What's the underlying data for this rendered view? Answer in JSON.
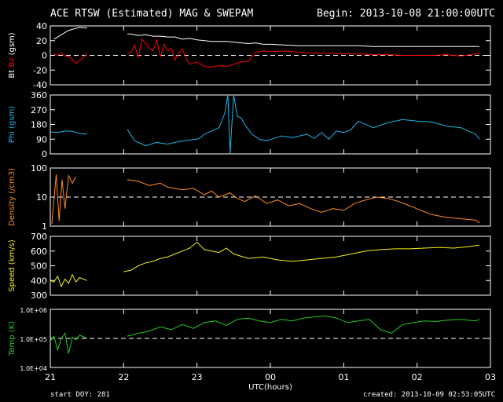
{
  "header": {
    "title": "ACE RTSW (Estimated) MAG & SWEPAM",
    "begin": "Begin: 2013-10-08 21:00:00UTC"
  },
  "footer": {
    "start_doy": "start DOY: 281",
    "created": "created: 2013-10-09 02:53:05UTC"
  },
  "colors": {
    "background": "#000000",
    "axes": "#ffffff",
    "bt": "#ffffff",
    "bz": "#ff0000",
    "phi": "#1fb4e6",
    "density": "#ff8c1a",
    "speed": "#f2f21a",
    "temp": "#22cc22"
  },
  "chart_data": [
    {
      "type": "line",
      "ylabel_parts": [
        "Bt",
        "Bz",
        "(gsm)"
      ],
      "ylim": [
        -40,
        40
      ],
      "yticks": [
        40,
        20,
        0,
        -20,
        -40
      ],
      "ref_line": 0,
      "series": [
        {
          "name": "Bt",
          "x": [
            21.05,
            21.15,
            21.25,
            21.32,
            21.4,
            21.5,
            22.05,
            22.1,
            22.2,
            22.3,
            22.4,
            22.5,
            22.6,
            22.7,
            22.8,
            22.9,
            23.0,
            23.1,
            23.2,
            23.3,
            23.4,
            23.5,
            23.6,
            23.7,
            23.8,
            23.9,
            24.0,
            24.2,
            24.4,
            24.6,
            24.8,
            25.0,
            25.2,
            25.4,
            25.6,
            25.8,
            26.0,
            26.2,
            26.4,
            26.6,
            26.85
          ],
          "values": [
            22,
            28,
            34,
            36,
            38,
            37,
            29,
            29,
            27,
            28,
            26,
            26,
            25,
            25,
            22,
            23,
            21,
            20,
            19,
            19,
            19,
            18,
            17,
            16,
            17,
            15,
            15,
            14,
            13,
            13,
            13,
            13,
            13,
            12,
            12,
            12,
            12,
            12,
            12,
            12,
            12
          ]
        },
        {
          "name": "Bz",
          "x": [
            21.05,
            21.1,
            21.15,
            21.2,
            21.25,
            21.3,
            21.35,
            21.4,
            21.45,
            21.5,
            22.05,
            22.1,
            22.15,
            22.2,
            22.25,
            22.3,
            22.35,
            22.4,
            22.45,
            22.5,
            22.55,
            22.6,
            22.65,
            22.7,
            22.75,
            22.8,
            22.85,
            22.9,
            23.0,
            23.1,
            23.2,
            23.3,
            23.4,
            23.5,
            23.6,
            23.7,
            23.8,
            23.9,
            24.0,
            24.2,
            24.4,
            24.6,
            24.8,
            25.0,
            25.2,
            25.4,
            25.6,
            25.8,
            26.0,
            26.2,
            26.4,
            26.6,
            26.8,
            26.85
          ],
          "values": [
            2,
            0,
            3,
            -1,
            -2,
            -5,
            -11,
            -7,
            -3,
            3,
            3,
            4,
            14,
            -3,
            22,
            16,
            10,
            6,
            21,
            -2,
            15,
            6,
            10,
            -6,
            3,
            8,
            -4,
            -12,
            -9,
            -15,
            -16,
            -14,
            -15,
            -12,
            -9,
            -8,
            4,
            6,
            5,
            6,
            4,
            3,
            3,
            2,
            2,
            1,
            1,
            0,
            0,
            0,
            1,
            -1,
            2,
            3
          ]
        }
      ]
    },
    {
      "type": "line",
      "ylabel": "Phi (gsm)",
      "ylim": [
        0,
        360
      ],
      "yticks": [
        360,
        270,
        180,
        90,
        0
      ],
      "series": [
        {
          "name": "Phi",
          "x": [
            21.0,
            21.1,
            21.2,
            21.3,
            21.4,
            21.5,
            22.05,
            22.15,
            22.3,
            22.45,
            22.6,
            22.75,
            22.9,
            23.0,
            23.05,
            23.1,
            23.2,
            23.3,
            23.38,
            23.42,
            23.45,
            23.5,
            23.55,
            23.6,
            23.65,
            23.7,
            23.75,
            23.85,
            23.95,
            24.05,
            24.15,
            24.3,
            24.4,
            24.5,
            24.6,
            24.7,
            24.8,
            24.9,
            25.0,
            25.1,
            25.2,
            25.4,
            25.6,
            25.8,
            26.0,
            26.2,
            26.4,
            26.6,
            26.8,
            26.85
          ],
          "values": [
            135,
            130,
            140,
            138,
            125,
            120,
            150,
            80,
            50,
            70,
            60,
            75,
            85,
            90,
            100,
            120,
            140,
            160,
            250,
            365,
            0,
            365,
            230,
            220,
            180,
            150,
            120,
            90,
            80,
            95,
            110,
            100,
            110,
            120,
            95,
            130,
            90,
            140,
            130,
            150,
            200,
            160,
            190,
            210,
            200,
            195,
            170,
            160,
            120,
            90
          ]
        }
      ]
    },
    {
      "type": "line",
      "ylabel": "Density (/cm3)",
      "yscale": "log",
      "ylim": [
        1,
        100
      ],
      "yticks": [
        100,
        10,
        1
      ],
      "ref_line": 10,
      "series": [
        {
          "name": "Density",
          "x": [
            21.02,
            21.08,
            21.12,
            21.16,
            21.2,
            21.25,
            21.3,
            21.35,
            22.05,
            22.2,
            22.35,
            22.5,
            22.6,
            22.8,
            22.95,
            23.1,
            23.2,
            23.3,
            23.45,
            23.55,
            23.65,
            23.8,
            23.95,
            24.1,
            24.25,
            24.4,
            24.55,
            24.7,
            24.85,
            25.0,
            25.15,
            25.3,
            25.45,
            25.6,
            25.75,
            25.9,
            26.05,
            26.2,
            26.4,
            26.6,
            26.8,
            26.85
          ],
          "values": [
            1.2,
            60,
            1.5,
            40,
            4,
            55,
            30,
            50,
            40,
            35,
            25,
            30,
            22,
            18,
            20,
            12,
            16,
            10,
            14,
            9,
            7,
            11,
            6,
            8,
            5,
            6,
            4,
            3,
            4,
            3.5,
            6,
            8,
            10,
            9,
            7,
            5,
            3.5,
            2.5,
            2,
            1.8,
            1.6,
            1.3
          ]
        }
      ]
    },
    {
      "type": "line",
      "ylabel": "Speed (km/s)",
      "ylim": [
        300,
        700
      ],
      "yticks": [
        700,
        600,
        500,
        400,
        300
      ],
      "series": [
        {
          "name": "Speed",
          "x": [
            21.0,
            21.05,
            21.1,
            21.15,
            21.2,
            21.25,
            21.3,
            21.35,
            21.4,
            21.5,
            22.0,
            22.1,
            22.2,
            22.3,
            22.4,
            22.5,
            22.6,
            22.7,
            22.8,
            22.9,
            23.0,
            23.1,
            23.2,
            23.3,
            23.4,
            23.5,
            23.7,
            23.9,
            24.1,
            24.3,
            24.5,
            24.7,
            24.9,
            25.1,
            25.3,
            25.5,
            25.7,
            25.9,
            26.1,
            26.3,
            26.5,
            26.7,
            26.85
          ],
          "values": [
            400,
            390,
            430,
            360,
            410,
            380,
            440,
            390,
            420,
            400,
            460,
            470,
            500,
            520,
            530,
            550,
            560,
            580,
            600,
            620,
            660,
            610,
            600,
            590,
            620,
            580,
            550,
            560,
            540,
            530,
            540,
            550,
            560,
            580,
            600,
            610,
            615,
            615,
            620,
            625,
            620,
            630,
            640
          ]
        }
      ]
    },
    {
      "type": "line",
      "ylabel": "Temp (K)",
      "yscale": "log",
      "ylim": [
        10000,
        1000000
      ],
      "yticks": [
        "1.0E+06",
        "1.0E+05",
        "1.0E+04"
      ],
      "ref_line": 100000,
      "series": [
        {
          "name": "Temp",
          "x": [
            21.0,
            21.05,
            21.1,
            21.15,
            21.2,
            21.25,
            21.3,
            21.35,
            21.4,
            21.5,
            22.05,
            22.2,
            22.35,
            22.5,
            22.65,
            22.8,
            22.95,
            23.1,
            23.25,
            23.4,
            23.55,
            23.7,
            23.85,
            24.0,
            24.15,
            24.3,
            24.45,
            24.6,
            24.75,
            24.9,
            25.05,
            25.2,
            25.35,
            25.5,
            25.65,
            25.8,
            25.95,
            26.1,
            26.25,
            26.4,
            26.6,
            26.8,
            26.85
          ],
          "values": [
            80000,
            120000,
            40000,
            100000,
            150000,
            30000,
            110000,
            90000,
            130000,
            100000,
            120000,
            150000,
            180000,
            250000,
            200000,
            300000,
            220000,
            350000,
            400000,
            280000,
            450000,
            500000,
            400000,
            350000,
            450000,
            400000,
            500000,
            550000,
            600000,
            500000,
            350000,
            400000,
            450000,
            200000,
            150000,
            300000,
            350000,
            400000,
            380000,
            420000,
            450000,
            400000,
            450000
          ]
        }
      ]
    }
  ],
  "x_axis": {
    "label": "UTC(hours)",
    "range": [
      21,
      27
    ],
    "ticks": [
      {
        "v": 21,
        "label": "21"
      },
      {
        "v": 22,
        "label": "22"
      },
      {
        "v": 23,
        "label": "23"
      },
      {
        "v": 24,
        "label": "00"
      },
      {
        "v": 25,
        "label": "01"
      },
      {
        "v": 26,
        "label": "02"
      },
      {
        "v": 27,
        "label": "03"
      }
    ]
  }
}
